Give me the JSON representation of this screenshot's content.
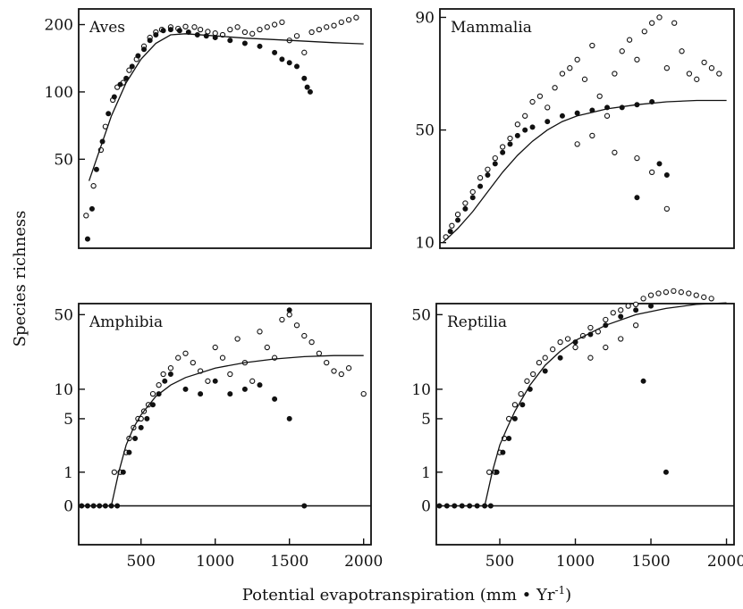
{
  "figure": {
    "ylabel": "Species richness",
    "xlabel_main": "Potential evapotranspiration (mm • Yr",
    "xlabel_sup": "-1",
    "xlabel_close": ")"
  },
  "chart_data": [
    {
      "type": "scatter",
      "title": "Aves",
      "xlim": [
        80,
        2050
      ],
      "ytick_labels": [
        "50",
        "100",
        "200"
      ],
      "ytick_values": [
        50,
        100,
        200
      ],
      "y_scale": "log",
      "xtick_labels": [],
      "trend_curve": {
        "x": [
          150,
          200,
          300,
          400,
          500,
          600,
          700,
          800,
          1000,
          1200,
          1500,
          1800,
          2000
        ],
        "y": [
          40,
          50,
          78,
          110,
          140,
          165,
          180,
          182,
          178,
          174,
          170,
          166,
          164
        ]
      },
      "open_points": [
        [
          130,
          28
        ],
        [
          180,
          38
        ],
        [
          230,
          55
        ],
        [
          260,
          70
        ],
        [
          310,
          92
        ],
        [
          340,
          105
        ],
        [
          380,
          110
        ],
        [
          420,
          125
        ],
        [
          470,
          140
        ],
        [
          520,
          160
        ],
        [
          560,
          175
        ],
        [
          600,
          185
        ],
        [
          640,
          190
        ],
        [
          700,
          195
        ],
        [
          750,
          192
        ],
        [
          800,
          196
        ],
        [
          860,
          195
        ],
        [
          900,
          190
        ],
        [
          950,
          186
        ],
        [
          1000,
          183
        ],
        [
          1050,
          180
        ],
        [
          1100,
          190
        ],
        [
          1150,
          195
        ],
        [
          1200,
          185
        ],
        [
          1250,
          182
        ],
        [
          1300,
          190
        ],
        [
          1350,
          195
        ],
        [
          1400,
          200
        ],
        [
          1450,
          205
        ],
        [
          1500,
          170
        ],
        [
          1550,
          178
        ],
        [
          1600,
          150
        ],
        [
          1650,
          185
        ],
        [
          1700,
          190
        ],
        [
          1750,
          195
        ],
        [
          1800,
          198
        ],
        [
          1850,
          205
        ],
        [
          1900,
          210
        ],
        [
          1950,
          215
        ]
      ],
      "filled_points": [
        [
          140,
          22
        ],
        [
          170,
          30
        ],
        [
          200,
          45
        ],
        [
          240,
          60
        ],
        [
          280,
          80
        ],
        [
          320,
          95
        ],
        [
          360,
          108
        ],
        [
          400,
          115
        ],
        [
          440,
          130
        ],
        [
          480,
          145
        ],
        [
          520,
          155
        ],
        [
          560,
          170
        ],
        [
          600,
          180
        ],
        [
          650,
          188
        ],
        [
          700,
          190
        ],
        [
          760,
          188
        ],
        [
          820,
          185
        ],
        [
          880,
          180
        ],
        [
          940,
          178
        ],
        [
          1000,
          175
        ],
        [
          1100,
          170
        ],
        [
          1200,
          165
        ],
        [
          1300,
          160
        ],
        [
          1400,
          150
        ],
        [
          1450,
          140
        ],
        [
          1500,
          135
        ],
        [
          1550,
          130
        ],
        [
          1600,
          115
        ],
        [
          1620,
          105
        ],
        [
          1640,
          100
        ]
      ]
    },
    {
      "type": "scatter",
      "title": "Mammalia",
      "xlim": [
        80,
        2050
      ],
      "ytick_labels": [
        "10",
        "50",
        "90"
      ],
      "ytick_values": [
        10,
        50,
        90
      ],
      "y_scale": "linear",
      "xtick_labels": [],
      "trend_curve": {
        "x": [
          100,
          200,
          300,
          400,
          500,
          600,
          700,
          800,
          900,
          1000,
          1200,
          1400,
          1600,
          1800,
          2000
        ],
        "y": [
          10,
          15,
          21,
          28,
          35,
          41,
          46,
          50,
          53,
          55,
          57.5,
          59,
          60,
          60.5,
          60.5
        ]
      },
      "open_points": [
        [
          120,
          12
        ],
        [
          160,
          16
        ],
        [
          200,
          20
        ],
        [
          250,
          24
        ],
        [
          300,
          28
        ],
        [
          350,
          33
        ],
        [
          400,
          36
        ],
        [
          450,
          40
        ],
        [
          500,
          44
        ],
        [
          550,
          47
        ],
        [
          600,
          52
        ],
        [
          650,
          55
        ],
        [
          700,
          60
        ],
        [
          750,
          62
        ],
        [
          800,
          58
        ],
        [
          850,
          65
        ],
        [
          900,
          70
        ],
        [
          950,
          72
        ],
        [
          1000,
          75
        ],
        [
          1050,
          68
        ],
        [
          1100,
          80
        ],
        [
          1150,
          62
        ],
        [
          1200,
          55
        ],
        [
          1250,
          70
        ],
        [
          1300,
          78
        ],
        [
          1350,
          82
        ],
        [
          1400,
          75
        ],
        [
          1450,
          85
        ],
        [
          1500,
          88
        ],
        [
          1550,
          90
        ],
        [
          1600,
          72
        ],
        [
          1650,
          88
        ],
        [
          1700,
          78
        ],
        [
          1750,
          70
        ],
        [
          1800,
          68
        ],
        [
          1850,
          74
        ],
        [
          1900,
          72
        ],
        [
          1950,
          70
        ],
        [
          1600,
          22
        ],
        [
          1000,
          45
        ],
        [
          1100,
          48
        ],
        [
          1250,
          42
        ],
        [
          1400,
          40
        ],
        [
          1500,
          35
        ]
      ],
      "filled_points": [
        [
          150,
          14
        ],
        [
          200,
          18
        ],
        [
          250,
          22
        ],
        [
          300,
          26
        ],
        [
          350,
          30
        ],
        [
          400,
          34
        ],
        [
          450,
          38
        ],
        [
          500,
          42
        ],
        [
          550,
          45
        ],
        [
          600,
          48
        ],
        [
          650,
          50
        ],
        [
          700,
          51
        ],
        [
          800,
          53
        ],
        [
          900,
          55
        ],
        [
          1000,
          56
        ],
        [
          1100,
          57
        ],
        [
          1200,
          58
        ],
        [
          1300,
          58
        ],
        [
          1400,
          59
        ],
        [
          1500,
          60
        ],
        [
          1400,
          26
        ],
        [
          1550,
          38
        ],
        [
          1600,
          34
        ]
      ]
    },
    {
      "type": "scatter",
      "title": "Amphibia",
      "xlim": [
        80,
        2050
      ],
      "ytick_labels": [
        "0",
        "1",
        "5",
        "10",
        "50"
      ],
      "ytick_values": [
        0,
        1,
        5,
        10,
        50
      ],
      "y_scale": "log(y+1)",
      "xtick_labels": [
        "500",
        "1000",
        "1500",
        "2000"
      ],
      "xtick_values": [
        500,
        1000,
        1500,
        2000
      ],
      "trend_curve": {
        "x": [
          300,
          350,
          400,
          450,
          500,
          600,
          700,
          800,
          1000,
          1200,
          1400,
          1600,
          1800,
          2000
        ],
        "y": [
          0,
          1,
          2.5,
          4,
          5.5,
          8.5,
          11,
          13,
          16,
          18,
          19.5,
          20.5,
          21,
          21
        ]
      },
      "open_points": [
        [
          320,
          1
        ],
        [
          360,
          1
        ],
        [
          400,
          2
        ],
        [
          420,
          3
        ],
        [
          450,
          4
        ],
        [
          480,
          5
        ],
        [
          500,
          5
        ],
        [
          520,
          6
        ],
        [
          550,
          7
        ],
        [
          580,
          9
        ],
        [
          620,
          11
        ],
        [
          650,
          14
        ],
        [
          700,
          16
        ],
        [
          750,
          20
        ],
        [
          800,
          22
        ],
        [
          850,
          18
        ],
        [
          900,
          15
        ],
        [
          950,
          12
        ],
        [
          1000,
          25
        ],
        [
          1050,
          20
        ],
        [
          1100,
          14
        ],
        [
          1150,
          30
        ],
        [
          1200,
          18
        ],
        [
          1250,
          12
        ],
        [
          1300,
          35
        ],
        [
          1350,
          25
        ],
        [
          1400,
          20
        ],
        [
          1450,
          45
        ],
        [
          1500,
          50
        ],
        [
          1550,
          40
        ],
        [
          1600,
          32
        ],
        [
          1650,
          28
        ],
        [
          1700,
          22
        ],
        [
          1750,
          18
        ],
        [
          1800,
          15
        ],
        [
          1850,
          14
        ],
        [
          1900,
          16
        ],
        [
          2000,
          9
        ]
      ],
      "filled_points": [
        [
          100,
          0
        ],
        [
          140,
          0
        ],
        [
          180,
          0
        ],
        [
          220,
          0
        ],
        [
          260,
          0
        ],
        [
          300,
          0
        ],
        [
          340,
          0
        ],
        [
          380,
          1
        ],
        [
          420,
          2
        ],
        [
          460,
          3
        ],
        [
          500,
          4
        ],
        [
          540,
          5
        ],
        [
          580,
          7
        ],
        [
          620,
          9
        ],
        [
          660,
          12
        ],
        [
          700,
          14
        ],
        [
          800,
          10
        ],
        [
          900,
          9
        ],
        [
          1000,
          12
        ],
        [
          1100,
          9
        ],
        [
          1200,
          10
        ],
        [
          1300,
          11
        ],
        [
          1400,
          8
        ],
        [
          1500,
          55
        ],
        [
          1500,
          5
        ],
        [
          1600,
          0
        ]
      ]
    },
    {
      "type": "scatter",
      "title": "Reptilia",
      "xlim": [
        80,
        2050
      ],
      "ytick_labels": [
        "0",
        "1",
        "5",
        "10",
        "50"
      ],
      "ytick_values": [
        0,
        1,
        5,
        10,
        50
      ],
      "y_scale": "log(y+1)",
      "xtick_labels": [
        "500",
        "1000",
        "1500",
        "2000"
      ],
      "xtick_values": [
        500,
        1000,
        1500,
        2000
      ],
      "trend_curve": {
        "x": [
          400,
          450,
          500,
          550,
          600,
          700,
          800,
          900,
          1000,
          1200,
          1400,
          1600,
          1800,
          2000
        ],
        "y": [
          0,
          1,
          2.5,
          4,
          6,
          11,
          17,
          23,
          29,
          40,
          50,
          57,
          62,
          64
        ]
      },
      "open_points": [
        [
          430,
          1
        ],
        [
          470,
          1
        ],
        [
          500,
          2
        ],
        [
          530,
          3
        ],
        [
          560,
          5
        ],
        [
          600,
          7
        ],
        [
          640,
          9
        ],
        [
          680,
          12
        ],
        [
          720,
          14
        ],
        [
          760,
          18
        ],
        [
          800,
          20
        ],
        [
          850,
          24
        ],
        [
          900,
          28
        ],
        [
          950,
          30
        ],
        [
          1000,
          25
        ],
        [
          1050,
          32
        ],
        [
          1100,
          38
        ],
        [
          1150,
          35
        ],
        [
          1200,
          45
        ],
        [
          1250,
          52
        ],
        [
          1300,
          55
        ],
        [
          1350,
          60
        ],
        [
          1400,
          62
        ],
        [
          1450,
          70
        ],
        [
          1500,
          75
        ],
        [
          1550,
          78
        ],
        [
          1600,
          80
        ],
        [
          1650,
          82
        ],
        [
          1700,
          80
        ],
        [
          1750,
          78
        ],
        [
          1800,
          75
        ],
        [
          1850,
          72
        ],
        [
          1900,
          70
        ],
        [
          1100,
          20
        ],
        [
          1200,
          25
        ],
        [
          1300,
          30
        ],
        [
          1400,
          40
        ]
      ],
      "filled_points": [
        [
          100,
          0
        ],
        [
          150,
          0
        ],
        [
          200,
          0
        ],
        [
          250,
          0
        ],
        [
          300,
          0
        ],
        [
          350,
          0
        ],
        [
          400,
          0
        ],
        [
          440,
          0
        ],
        [
          480,
          1
        ],
        [
          520,
          2
        ],
        [
          560,
          3
        ],
        [
          600,
          5
        ],
        [
          650,
          7
        ],
        [
          700,
          10
        ],
        [
          800,
          15
        ],
        [
          900,
          20
        ],
        [
          1000,
          28
        ],
        [
          1100,
          33
        ],
        [
          1200,
          40
        ],
        [
          1300,
          48
        ],
        [
          1400,
          55
        ],
        [
          1500,
          60
        ],
        [
          1450,
          12
        ],
        [
          1600,
          1
        ]
      ]
    }
  ]
}
